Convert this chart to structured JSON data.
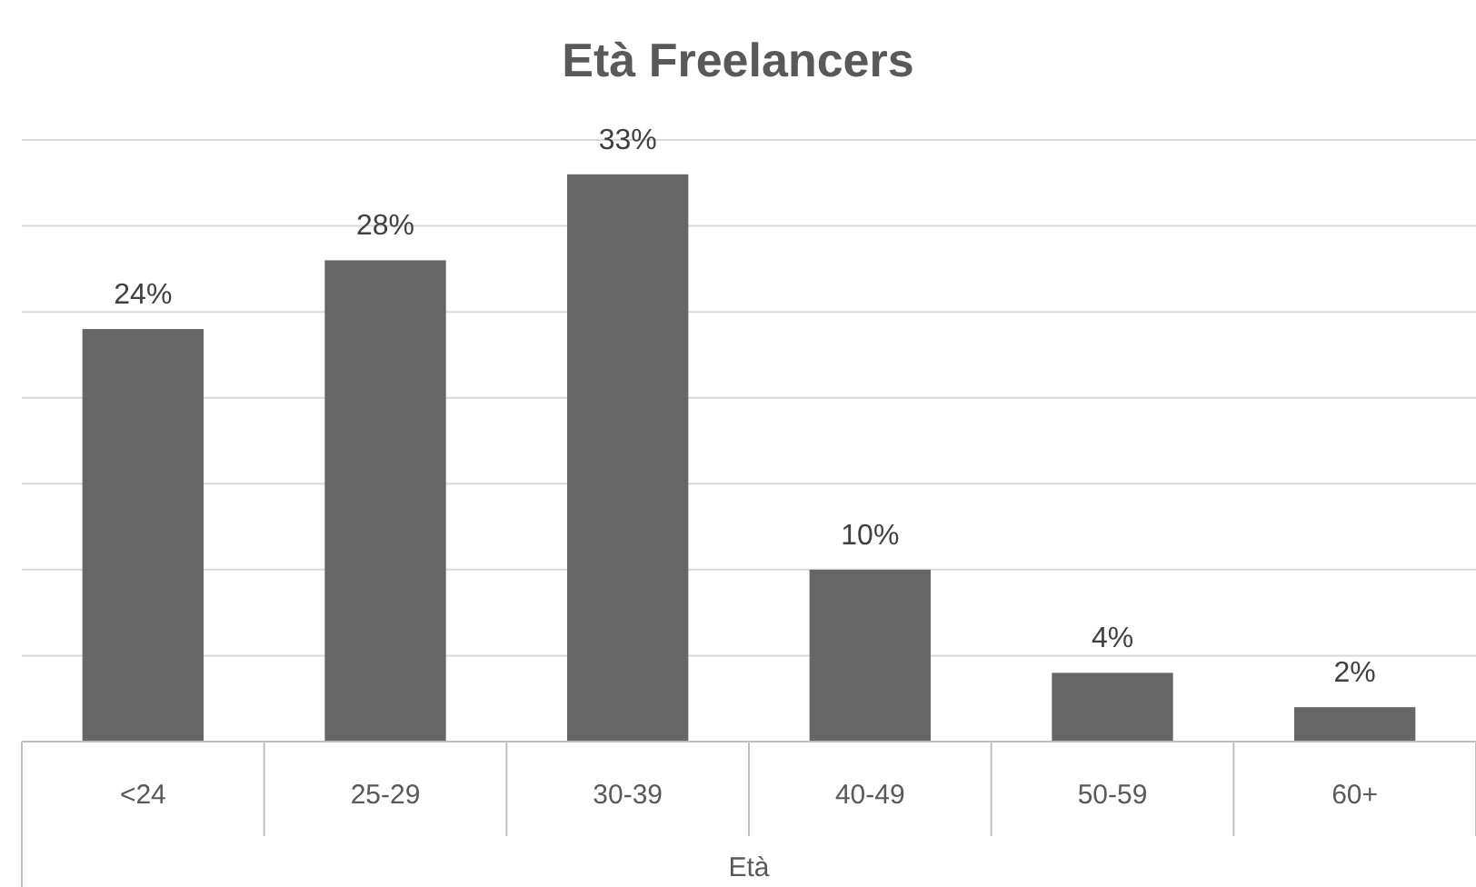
{
  "chart_data": {
    "type": "bar",
    "title": "Età Freelancers",
    "xlabel": "Età",
    "categories": [
      "<24",
      "25-29",
      "30-39",
      "40-49",
      "50-59",
      "60+"
    ],
    "values": [
      24,
      28,
      33,
      10,
      4,
      2
    ],
    "value_labels": [
      "24%",
      "28%",
      "33%",
      "10%",
      "4%",
      "2%"
    ],
    "color": "#666666",
    "ylim": [
      0,
      35
    ],
    "yticks": [
      {
        "value": 0,
        "label": null
      },
      {
        "value": 5,
        "label": null
      },
      {
        "value": 10,
        "label": null
      },
      {
        "value": 15,
        "label": null
      },
      {
        "value": 20,
        "label": null
      },
      {
        "value": 25,
        "label": null
      },
      {
        "value": 30,
        "label": null
      },
      {
        "value": 35,
        "label": null
      }
    ],
    "grid": "y",
    "tick_labels": "x"
  }
}
